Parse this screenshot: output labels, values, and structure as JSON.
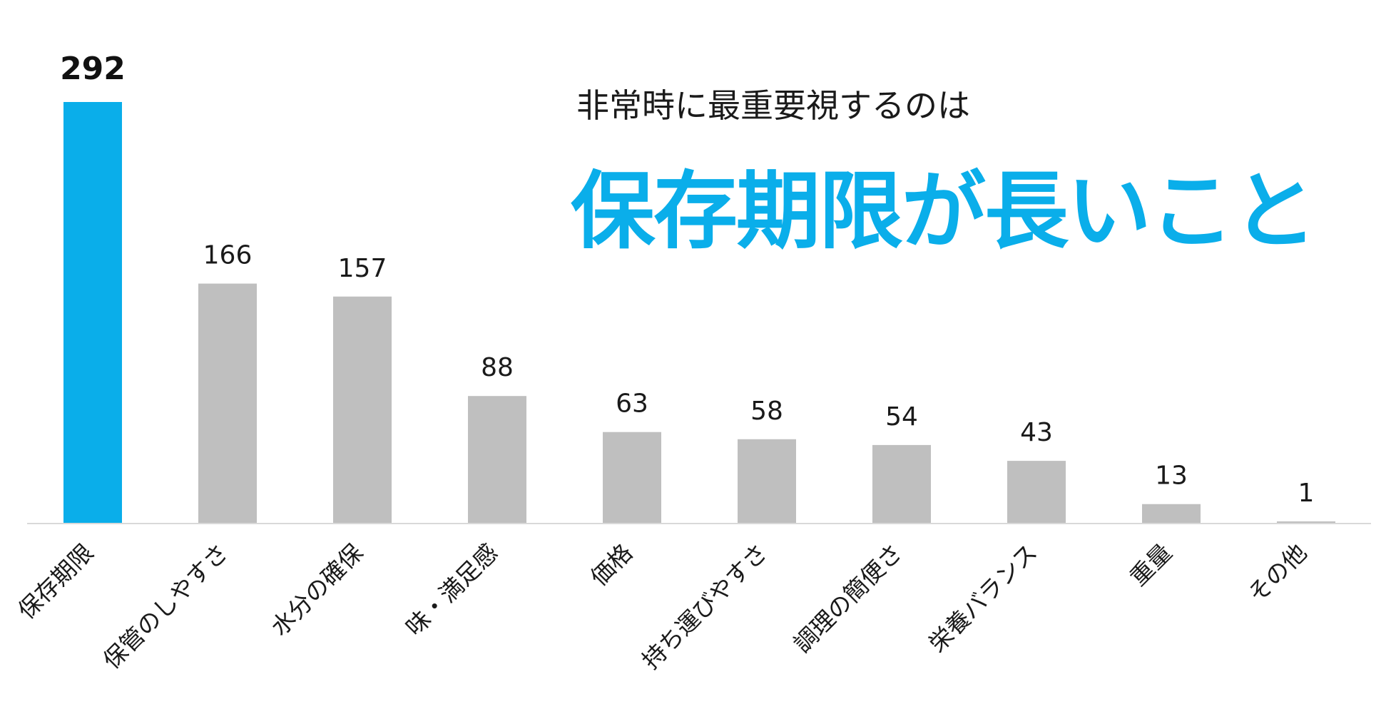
{
  "headline": {
    "subtitle": "非常時に最重要視するのは",
    "title": "保存期限が長いこと"
  },
  "colors": {
    "highlight": "#0aaeea",
    "bar": "#bfbfbf",
    "axis": "#d9d9d9",
    "label": "#1a1a1a"
  },
  "chart_data": {
    "type": "bar",
    "categories": [
      "保存期限",
      "保管のしやすさ",
      "水分の確保",
      "味・満足感",
      "価格",
      "持ち運びやすさ",
      "調理の簡便さ",
      "栄養バランス",
      "重量",
      "その他"
    ],
    "values": [
      292,
      166,
      157,
      88,
      63,
      58,
      54,
      43,
      13,
      1
    ],
    "value_labels": [
      "292",
      "166",
      "157",
      "88",
      "63",
      "58",
      "54",
      "43",
      "13",
      "1"
    ],
    "highlight_index": 0,
    "xlabel": "",
    "ylabel": "",
    "ylim": [
      0,
      292
    ],
    "grid": false,
    "legend": "none"
  }
}
